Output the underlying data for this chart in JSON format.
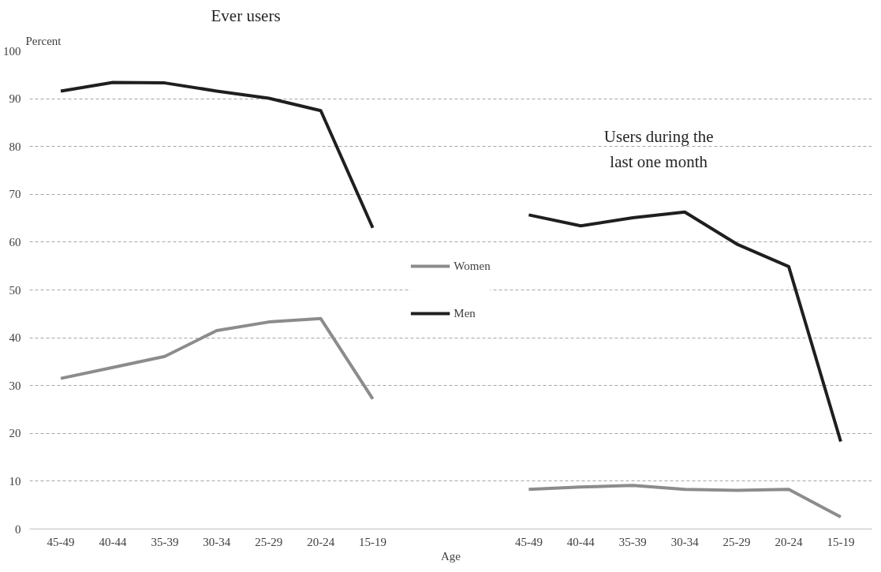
{
  "chart_data": {
    "type": "line",
    "ylabel": "Percent",
    "xlabel": "Age",
    "categories": [
      "45-49",
      "40-44",
      "35-39",
      "30-34",
      "25-29",
      "20-24",
      "15-19",
      null,
      null,
      "45-49",
      "40-44",
      "35-39",
      "30-34",
      "25-29",
      "20-24",
      "15-19"
    ],
    "series": [
      {
        "name": "Women",
        "color": "#8c8c8c",
        "values": [
          31.5,
          33.8,
          36.1,
          41.5,
          43.3,
          44.0,
          27.2,
          null,
          null,
          8.3,
          8.8,
          9.1,
          8.3,
          8.1,
          8.3,
          2.5
        ]
      },
      {
        "name": "Men",
        "color": "#1f1f1f",
        "values": [
          91.6,
          93.4,
          93.3,
          91.6,
          90.1,
          87.5,
          63,
          null,
          null,
          65.7,
          63.4,
          65.1,
          66.3,
          59.6,
          54.9,
          18.3
        ]
      }
    ],
    "annotations": [
      "Ever users",
      "Users during the\nlast one month"
    ],
    "ylim": [
      0,
      100
    ],
    "yticks": [
      0,
      10,
      20,
      30,
      40,
      50,
      60,
      70,
      80,
      90,
      100
    ],
    "grid": "y",
    "legend": "center",
    "line_style": "solid",
    "marker": "none"
  }
}
